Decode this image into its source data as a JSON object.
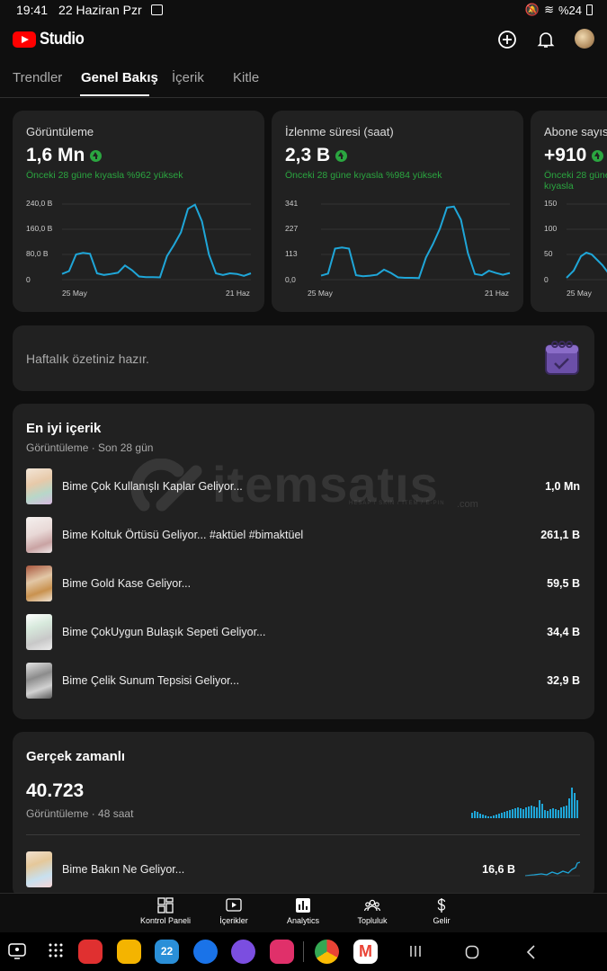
{
  "status": {
    "time": "19:41",
    "date": "22 Haziran Pzr",
    "battery": "%24"
  },
  "app": {
    "brand": "Studio"
  },
  "tabs": [
    "Trendler",
    "Genel Bakış",
    "İçerik",
    "Kitle"
  ],
  "metrics": [
    {
      "title": "Görüntüleme",
      "value": "1,6 Mn",
      "compare": "Önceki 28 güne kıyasla %962 yüksek",
      "yticks": [
        "240,0 B",
        "160,0 B",
        "80,0 B",
        "0"
      ],
      "xstart": "25 May",
      "xend": "21 Haz"
    },
    {
      "title": "İzlenme süresi (saat)",
      "value": "2,3 B",
      "compare": "Önceki 28 güne kıyasla %984 yüksek",
      "yticks": [
        "341",
        "227",
        "113",
        "0,0"
      ],
      "xstart": "25 May",
      "xend": "21 Haz"
    },
    {
      "title": "Abone sayısı",
      "value": "+910",
      "compare": "Önceki 28 güne kıyasla",
      "yticks": [
        "150",
        "100",
        "50",
        "0"
      ],
      "xstart": "25 May",
      "xend": ""
    }
  ],
  "chart_data": {
    "type": "line",
    "series": [
      {
        "values": [
          18,
          27,
          80,
          85,
          82,
          20,
          15,
          18,
          22,
          45,
          30,
          10,
          8,
          8,
          7,
          75,
          110,
          150,
          225,
          238,
          185,
          80,
          20,
          15,
          20,
          18,
          12,
          20
        ]
      },
      {
        "values": [
          18,
          27,
          140,
          145,
          140,
          20,
          15,
          18,
          22,
          45,
          30,
          10,
          8,
          8,
          7,
          100,
          160,
          230,
          325,
          330,
          270,
          120,
          25,
          20,
          40,
          30,
          22,
          30
        ]
      }
    ]
  },
  "weekly": {
    "text": "Haftalık özetiniz hazır."
  },
  "top_content": {
    "title": "En iyi içerik",
    "subtitle": "Görüntüleme · Son 28 gün",
    "items": [
      {
        "title": "Bime Çok Kullanışlı Kaplar Geliyor...",
        "value": "1,0 Mn"
      },
      {
        "title": "Bime Koltuk Örtüsü Geliyor... #aktüel #bimaktüel",
        "value": "261,1 B"
      },
      {
        "title": "Bime Gold Kase Geliyor...",
        "value": "59,5 B"
      },
      {
        "title": "Bime ÇokUygun Bulaşık Sepeti Geliyor...",
        "value": "34,4 B"
      },
      {
        "title": "Bime Çelik Sunum Tepsisi Geliyor...",
        "value": "32,9 B"
      }
    ]
  },
  "realtime": {
    "title": "Gerçek zamanlı",
    "value": "40.723",
    "subtitle": "Görüntüleme · 48 saat",
    "item": {
      "title": "Bime Bakın Ne Geliyor...",
      "value": "16,6 B"
    }
  },
  "nav": [
    "Kontrol Paneli",
    "İçerikler",
    "Analytics",
    "Topluluk",
    "Gelir"
  ],
  "watermark": {
    "main": "itemsatıs",
    "sub": "HESAP / SKIN / ITEM / E-PIN",
    "domain": ".com"
  },
  "colors": {
    "chart_line": "#1fa6d8",
    "positive": "#2ba640"
  }
}
